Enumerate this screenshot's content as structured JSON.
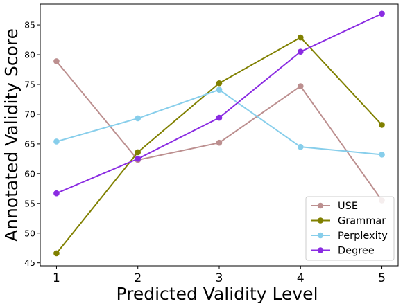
{
  "chart_data": {
    "type": "line",
    "title": "",
    "xlabel": "Predicted Validity Level",
    "ylabel": "Annotated Validity Score",
    "x": [
      1,
      2,
      3,
      4,
      5
    ],
    "x_tick_labels": [
      "1",
      "2",
      "3",
      "4",
      "5"
    ],
    "xlim": [
      0.8,
      5.2
    ],
    "ylim": [
      44.5,
      88.5
    ],
    "y_ticks": [
      45,
      50,
      55,
      60,
      65,
      70,
      75,
      80,
      85
    ],
    "y_tick_labels": [
      "45",
      "50",
      "55",
      "60",
      "65",
      "70",
      "75",
      "80",
      "85"
    ],
    "grid": false,
    "legend_position": "lower-right",
    "series": [
      {
        "name": "USE",
        "color": "#bc8f8f",
        "values": [
          78.9,
          62.3,
          65.2,
          74.7,
          55.5
        ]
      },
      {
        "name": "Grammar",
        "color": "#808000",
        "values": [
          46.6,
          63.6,
          75.2,
          82.9,
          68.2
        ]
      },
      {
        "name": "Perplexity",
        "color": "#87ceeb",
        "values": [
          65.4,
          69.3,
          74.1,
          64.5,
          63.2
        ]
      },
      {
        "name": "Degree",
        "color": "#8a2be2",
        "values": [
          56.7,
          62.5,
          69.4,
          80.5,
          86.9
        ]
      }
    ]
  }
}
